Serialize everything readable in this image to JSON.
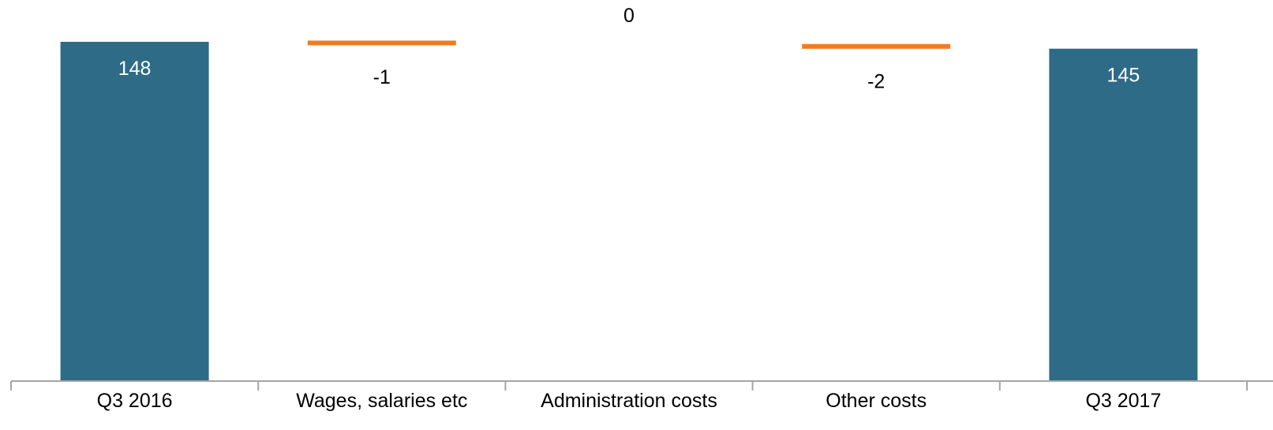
{
  "chart_data": {
    "type": "bar",
    "subtype": "waterfall",
    "title": "",
    "xlabel": "",
    "ylabel": "",
    "categories": [
      "Q3 2016",
      "Wages, salaries etc",
      "Administration costs",
      "Other costs",
      "Q3 2017"
    ],
    "values": [
      148,
      -1,
      0,
      -2,
      145
    ],
    "labels": [
      "148",
      "-1",
      "0",
      "-2",
      "145"
    ],
    "kinds": [
      "total",
      "delta",
      "delta",
      "delta",
      "total"
    ],
    "ylim": [
      0,
      148
    ],
    "grid": false,
    "legend": "none",
    "colors": {
      "total": "#2e6b87",
      "delta": "#f07c22",
      "axis": "#a6a6a6",
      "label_on_bar": "#ffffff",
      "label_text": "#000000"
    }
  }
}
